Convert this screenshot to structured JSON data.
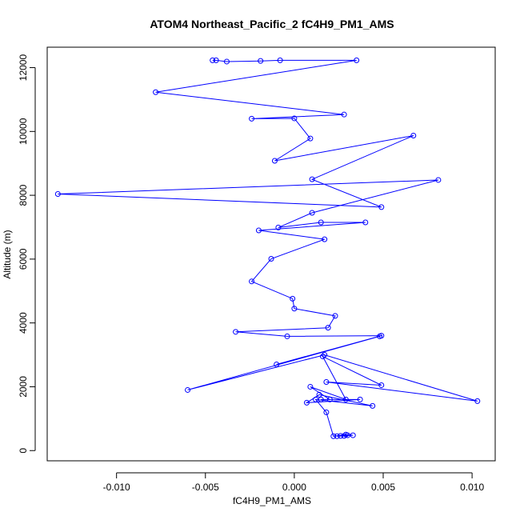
{
  "chart_data": {
    "type": "line",
    "title": "ATOM4 Northeast_Pacific_2 fC4H9_PM1_AMS",
    "xlabel": "fC4H9_PM1_AMS",
    "ylabel": "Altitude (m)",
    "xlim": [
      -0.0139,
      0.0113
    ],
    "ylim": [
      -320,
      12640
    ],
    "x_ticks": [
      -0.01,
      -0.005,
      0.0,
      0.005,
      0.01
    ],
    "x_tick_labels": [
      "-0.010",
      "-0.005",
      "0.000",
      "0.005",
      "0.010"
    ],
    "y_ticks": [
      0,
      2000,
      4000,
      6000,
      8000,
      10000,
      12000
    ],
    "y_tick_labels": [
      "0",
      "2000",
      "4000",
      "6000",
      "8000",
      "10000",
      "12000"
    ],
    "grid": false,
    "series_color": "#0000ff",
    "series": [
      {
        "marker": "open-circle",
        "x": [
          0.003,
          0.0028,
          0.0024,
          0.0026,
          0.0033,
          0.0029,
          0.0022,
          0.0018,
          0.0012,
          0.0044,
          0.0014,
          0.0007,
          0.0037,
          0.0015,
          0.002,
          0.0009,
          0.0029,
          0.0016,
          0.0049,
          0.0018,
          0.0103,
          0.0017,
          -0.006,
          0.0048,
          -0.001,
          0.0049,
          -0.0004,
          -0.0033,
          0.0019,
          0.0023,
          0.0,
          -0.0001,
          -0.0024,
          -0.0013,
          0.0017,
          -0.002,
          0.004,
          0.0015,
          -0.0009,
          0.001,
          0.0081,
          -0.0133,
          0.0049,
          0.001,
          0.0067,
          -0.0011,
          0.0009,
          0.0,
          -0.0024,
          0.0028,
          -0.0078,
          0.0035,
          -0.0008,
          -0.0019,
          -0.0038,
          -0.0044,
          -0.0046
        ],
        "y": [
          480,
          460,
          450,
          460,
          480,
          500,
          450,
          1200,
          1600,
          1400,
          1750,
          1500,
          1600,
          1600,
          1600,
          2000,
          1600,
          2950,
          2050,
          2150,
          1550,
          3000,
          1900,
          3580,
          2700,
          3600,
          3580,
          3720,
          3850,
          4220,
          4450,
          4760,
          5300,
          6010,
          6620,
          6900,
          7150,
          7150,
          6990,
          7450,
          8480,
          8040,
          7630,
          8500,
          9870,
          9080,
          9780,
          10410,
          10400,
          10530,
          11230,
          12230,
          12230,
          12210,
          12190,
          12230,
          12230
        ]
      }
    ]
  }
}
